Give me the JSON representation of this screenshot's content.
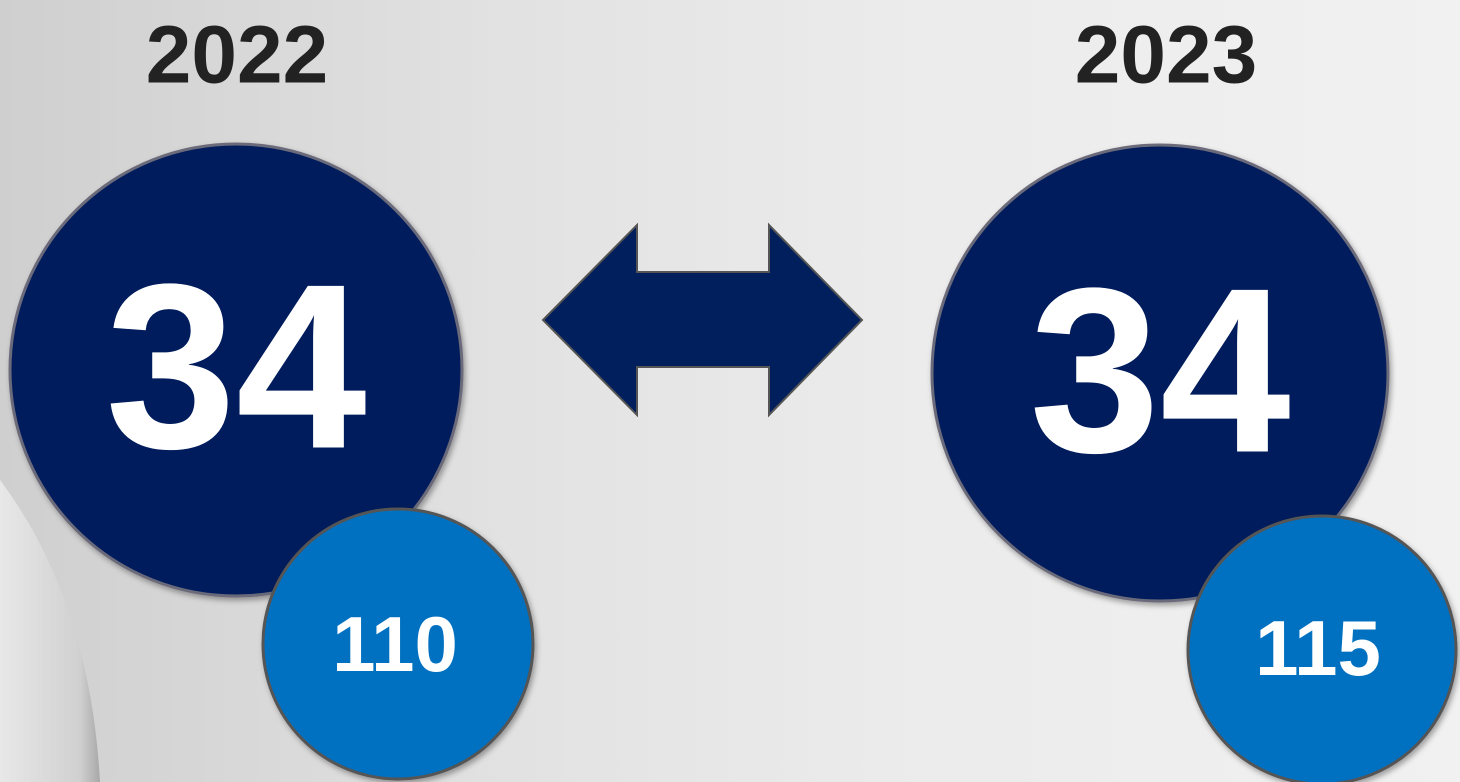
{
  "columns": [
    {
      "year": "2022",
      "main": 34,
      "sub": 110
    },
    {
      "year": "2023",
      "main": 34,
      "sub": 115
    }
  ]
}
